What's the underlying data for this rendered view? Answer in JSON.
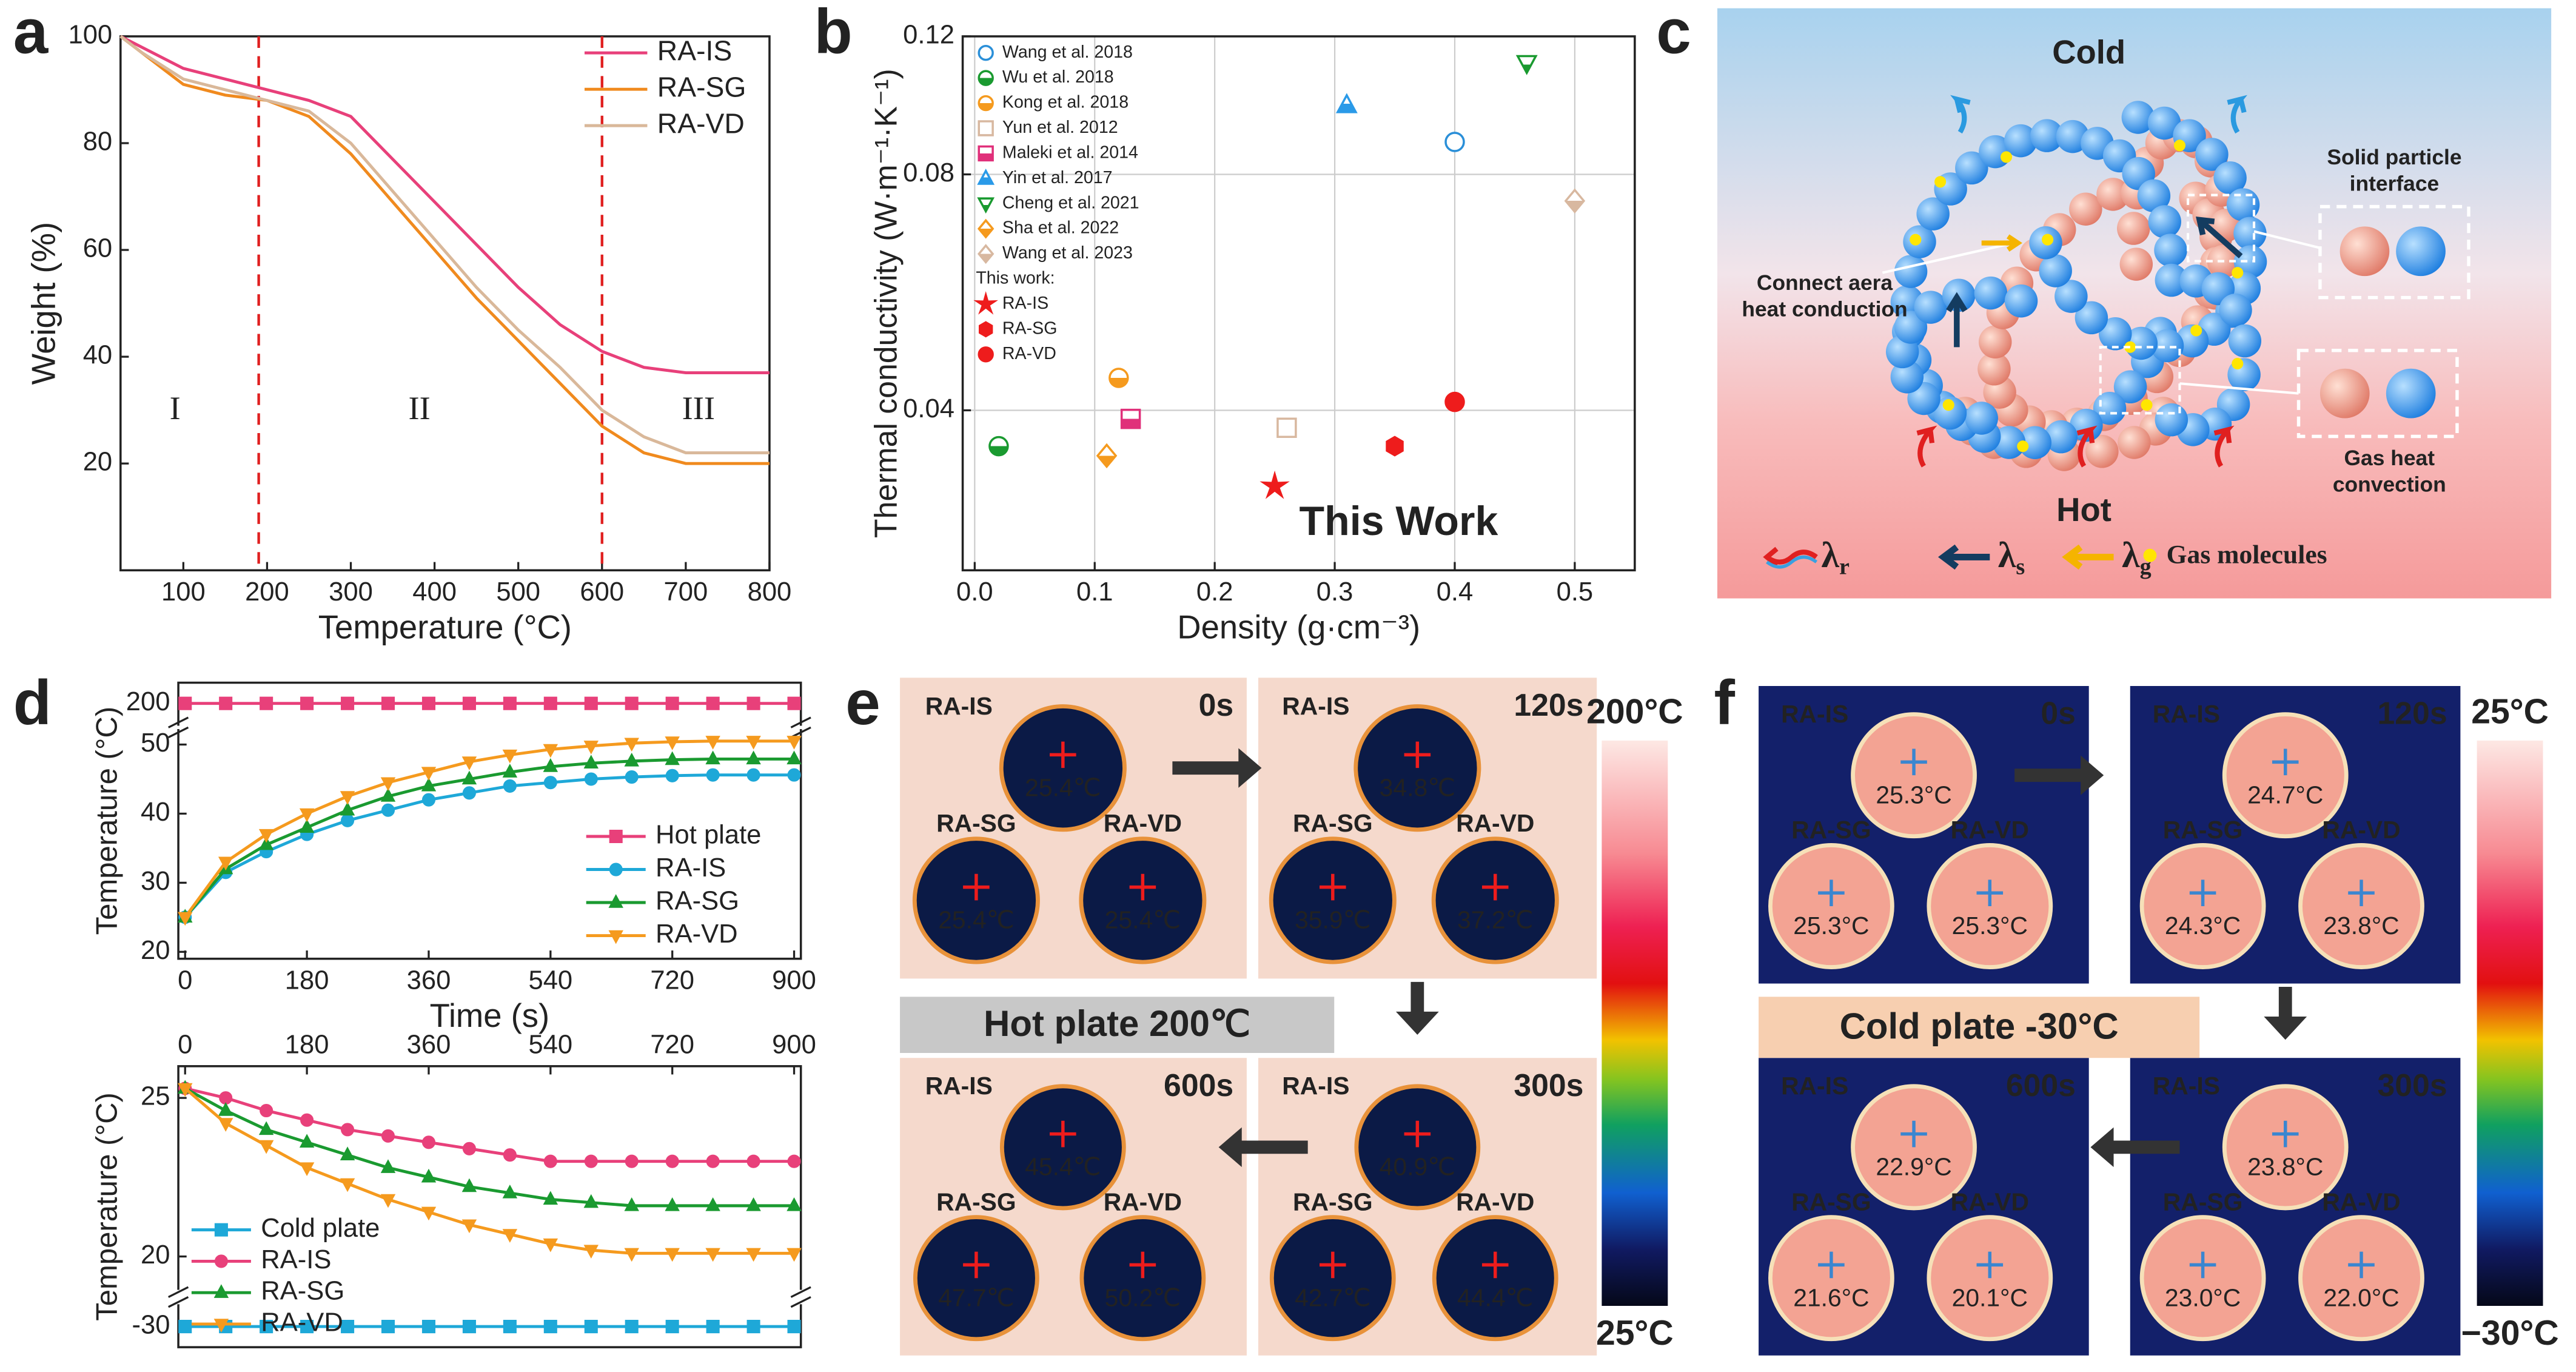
{
  "panel_labels": [
    "a",
    "b",
    "c",
    "d",
    "e",
    "f"
  ],
  "chart_data": [
    {
      "type": "line",
      "xlabel": "Temperature (°C)",
      "ylabel": "Weight (%)",
      "x": [
        25,
        50,
        100,
        150,
        200,
        250,
        300,
        350,
        400,
        450,
        500,
        550,
        600,
        650,
        700,
        750,
        800
      ],
      "series": [
        {
          "name": "RA-IS",
          "color": "#e8407a",
          "values": [
            100,
            98,
            94,
            92,
            90,
            88,
            85,
            77,
            69,
            61,
            53,
            46,
            41,
            38,
            37,
            37,
            37
          ]
        },
        {
          "name": "RA-SG",
          "color": "#f08a1e",
          "values": [
            100,
            97,
            91,
            89,
            88,
            85,
            78,
            69,
            60,
            51,
            43,
            35,
            27,
            22,
            20,
            20,
            20
          ]
        },
        {
          "name": "RA-VD",
          "color": "#d9b89a",
          "values": [
            100,
            97,
            92,
            90,
            88,
            86,
            80,
            71,
            62,
            53,
            45,
            38,
            30,
            25,
            22,
            22,
            22
          ]
        }
      ],
      "xlim": [
        25,
        800
      ],
      "xticks": [
        100,
        200,
        300,
        400,
        500,
        600,
        700,
        800
      ],
      "ylim": [
        0,
        100
      ],
      "yticks": [
        20,
        40,
        60,
        80,
        100
      ],
      "vlines": [
        190,
        600
      ],
      "vline_color": "#e02020",
      "annotations": [
        "I",
        "II",
        "III"
      ],
      "legend": "upper right"
    },
    {
      "type": "scatter",
      "xlabel": "Density (g·cm⁻³)",
      "ylabel": "Thermal conductivity (W·m⁻¹·K⁻¹)",
      "series": [
        {
          "name": "Wang et al. 2018",
          "color": "#2a8fd8",
          "marker": "circle",
          "marker_fill": "open",
          "x": [
            0.4
          ],
          "values": [
            0.088
          ]
        },
        {
          "name": "Wu et al. 2018",
          "color": "#1a9a30",
          "marker": "circle",
          "marker_fill": "half",
          "x": [
            0.02
          ],
          "values": [
            0.036
          ]
        },
        {
          "name": "Kong et al. 2018",
          "color": "#f59a1e",
          "marker": "circle",
          "marker_fill": "half",
          "x": [
            0.12
          ],
          "values": [
            0.044
          ]
        },
        {
          "name": "Yun et al. 2012",
          "color": "#d8b8a0",
          "marker": "square",
          "marker_fill": "open",
          "x": [
            0.26
          ],
          "values": [
            0.038
          ]
        },
        {
          "name": "Maleki et al. 2014",
          "color": "#e0307a",
          "marker": "square",
          "marker_fill": "half",
          "x": [
            0.13
          ],
          "values": [
            0.039
          ]
        },
        {
          "name": "Yin et al. 2017",
          "color": "#2a9ae8",
          "marker": "triangle-up",
          "marker_fill": "half",
          "x": [
            0.31
          ],
          "values": [
            0.098
          ]
        },
        {
          "name": "Cheng et al. 2021",
          "color": "#1a9a30",
          "marker": "triangle-down",
          "marker_fill": "half",
          "x": [
            0.46
          ],
          "values": [
            0.111
          ]
        },
        {
          "name": "Sha et al. 2022",
          "color": "#f59a1e",
          "marker": "diamond",
          "marker_fill": "half",
          "x": [
            0.11
          ],
          "values": [
            0.035
          ]
        },
        {
          "name": "Wang et al. 2023",
          "color": "#d8b8a0",
          "marker": "diamond",
          "marker_fill": "half",
          "x": [
            0.5
          ],
          "values": [
            0.074
          ]
        },
        {
          "name": "RA-IS",
          "color": "#ee1c1c",
          "marker": "star",
          "marker_fill": "solid",
          "x": [
            0.25
          ],
          "values": [
            0.032
          ]
        },
        {
          "name": "RA-SG",
          "color": "#ee1c1c",
          "marker": "hexagon",
          "marker_fill": "solid",
          "x": [
            0.35
          ],
          "values": [
            0.036
          ]
        },
        {
          "name": "RA-VD",
          "color": "#ee1c1c",
          "marker": "circle",
          "marker_fill": "solid",
          "x": [
            0.4
          ],
          "values": [
            0.041
          ]
        }
      ],
      "xlim": [
        -0.01,
        0.55
      ],
      "xticks": [
        {
          "value": 0,
          "label": "0.0"
        },
        0.1,
        0.2,
        0.3,
        0.4,
        0.5
      ],
      "ylim": [
        0.025,
        0.12
      ],
      "yticks": [
        0.04,
        0.08,
        0.12
      ],
      "log_y": true,
      "grid": true,
      "legend": "upper left",
      "legend_heading": "This work:",
      "annotations": [
        "This Work"
      ]
    },
    {
      "type": "line",
      "xlabel": "Time (s)",
      "ylabel": "Temperature (°C)",
      "x": [
        0,
        60,
        120,
        180,
        240,
        300,
        360,
        420,
        480,
        540,
        600,
        660,
        720,
        780,
        840,
        900
      ],
      "series": [
        {
          "name": "Hot plate",
          "color": "#e8407a",
          "marker": "square",
          "values": [
            200,
            200,
            200,
            200,
            200,
            200,
            200,
            200,
            200,
            200,
            200,
            200,
            200,
            200,
            200,
            200
          ]
        },
        {
          "name": "RA-IS",
          "color": "#1ea8d8",
          "marker": "circle",
          "values": [
            25,
            31.5,
            34.5,
            37,
            39,
            40.5,
            42,
            43,
            44,
            44.5,
            45,
            45.3,
            45.5,
            45.6,
            45.6,
            45.6
          ]
        },
        {
          "name": "RA-SG",
          "color": "#1a9a30",
          "marker": "triangle-up",
          "values": [
            25,
            32,
            35.5,
            38,
            40.5,
            42.5,
            44,
            45,
            46,
            46.8,
            47.3,
            47.6,
            47.8,
            47.9,
            47.9,
            47.9
          ]
        },
        {
          "name": "RA-VD",
          "color": "#f59a1e",
          "marker": "triangle-down",
          "values": [
            25,
            33,
            37,
            40,
            42.5,
            44.5,
            46,
            47.5,
            48.5,
            49.3,
            49.8,
            50.2,
            50.4,
            50.5,
            50.5,
            50.5
          ]
        }
      ],
      "xlim": [
        -10,
        910
      ],
      "xticks": [
        0,
        180,
        360,
        540,
        720,
        900
      ],
      "ylim": [
        19,
        201
      ],
      "ybreak": [
        52,
        199
      ],
      "yticks": [
        20,
        30,
        40,
        50,
        200
      ],
      "legend": "lower right"
    },
    {
      "type": "line",
      "ylabel": "Temperature (°C)",
      "xaxis": "top",
      "x": [
        0,
        60,
        120,
        180,
        240,
        300,
        360,
        420,
        480,
        540,
        600,
        660,
        720,
        780,
        840,
        900
      ],
      "series": [
        {
          "name": "Cold plate",
          "color": "#1ea8d8",
          "marker": "square",
          "values": [
            -30,
            -30,
            -30,
            -30,
            -30,
            -30,
            -30,
            -30,
            -30,
            -30,
            -30,
            -30,
            -30,
            -30,
            -30,
            -30
          ]
        },
        {
          "name": "RA-IS",
          "color": "#e8407a",
          "marker": "circle",
          "values": [
            25.3,
            25,
            24.6,
            24.3,
            24,
            23.8,
            23.6,
            23.4,
            23.2,
            23,
            23,
            23,
            23,
            23,
            23,
            23
          ]
        },
        {
          "name": "RA-SG",
          "color": "#1a9a30",
          "marker": "triangle-up",
          "values": [
            25.3,
            24.6,
            24,
            23.6,
            23.2,
            22.8,
            22.5,
            22.2,
            22,
            21.8,
            21.7,
            21.6,
            21.6,
            21.6,
            21.6,
            21.6
          ]
        },
        {
          "name": "RA-VD",
          "color": "#f59a1e",
          "marker": "triangle-down",
          "values": [
            25.3,
            24.2,
            23.5,
            22.8,
            22.3,
            21.8,
            21.4,
            21,
            20.7,
            20.4,
            20.2,
            20.1,
            20.1,
            20.1,
            20.1,
            20.1
          ]
        }
      ],
      "xlim": [
        -10,
        910
      ],
      "xticks": [
        0,
        180,
        360,
        540,
        720,
        900
      ],
      "ylim": [
        -31,
        26
      ],
      "ybreak": [
        -29,
        19
      ],
      "yticks": [
        -30,
        20,
        25
      ],
      "legend": "lower left"
    }
  ],
  "diagram_c": {
    "cold": "Cold",
    "hot": "Hot",
    "solid_particle_interface": [
      "Solid particle",
      "interface"
    ],
    "connect_area": [
      "Connect aera",
      "heat conduction"
    ],
    "gas_convection": [
      "Gas heat",
      "convection"
    ],
    "legend": [
      {
        "symbol": "λ",
        "sub": "r"
      },
      {
        "symbol": "λ",
        "sub": "s"
      },
      {
        "symbol": "λ",
        "sub": "g"
      }
    ],
    "gas_molecules": "Gas molecules"
  },
  "thermal_e": {
    "banner": "Hot plate 200℃",
    "colorbar": {
      "max": "200°C",
      "min": "25°C"
    },
    "frames": [
      {
        "time": "0s",
        "samples": [
          {
            "name": "RA-IS",
            "temp": "25.4℃"
          },
          {
            "name": "RA-SG",
            "temp": "25.4℃"
          },
          {
            "name": "RA-VD",
            "temp": "25.4℃"
          }
        ]
      },
      {
        "time": "120s",
        "samples": [
          {
            "name": "RA-IS",
            "temp": "34.8℃"
          },
          {
            "name": "RA-SG",
            "temp": "35.9℃"
          },
          {
            "name": "RA-VD",
            "temp": "37.2℃"
          }
        ]
      },
      {
        "time": "600s",
        "samples": [
          {
            "name": "RA-IS",
            "temp": "45.4℃"
          },
          {
            "name": "RA-SG",
            "temp": "47.7℃"
          },
          {
            "name": "RA-VD",
            "temp": "50.2℃"
          }
        ]
      },
      {
        "time": "300s",
        "samples": [
          {
            "name": "RA-IS",
            "temp": "40.9℃"
          },
          {
            "name": "RA-SG",
            "temp": "42.7℃"
          },
          {
            "name": "RA-VD",
            "temp": "44.4℃"
          }
        ]
      }
    ]
  },
  "thermal_f": {
    "banner": "Cold plate -30°C",
    "colorbar": {
      "max": "25°C",
      "min": "−30°C"
    },
    "frames": [
      {
        "time": "0s",
        "samples": [
          {
            "name": "RA-IS",
            "temp": "25.3°C"
          },
          {
            "name": "RA-SG",
            "temp": "25.3°C"
          },
          {
            "name": "RA-VD",
            "temp": "25.3°C"
          }
        ]
      },
      {
        "time": "120s",
        "samples": [
          {
            "name": "RA-IS",
            "temp": "24.7°C"
          },
          {
            "name": "RA-SG",
            "temp": "24.3°C"
          },
          {
            "name": "RA-VD",
            "temp": "23.8°C"
          }
        ]
      },
      {
        "time": "600s",
        "samples": [
          {
            "name": "RA-IS",
            "temp": "22.9°C"
          },
          {
            "name": "RA-SG",
            "temp": "21.6°C"
          },
          {
            "name": "RA-VD",
            "temp": "20.1°C"
          }
        ]
      },
      {
        "time": "300s",
        "samples": [
          {
            "name": "RA-IS",
            "temp": "23.8°C"
          },
          {
            "name": "RA-SG",
            "temp": "23.0°C"
          },
          {
            "name": "RA-VD",
            "temp": "22.0°C"
          }
        ]
      }
    ]
  }
}
